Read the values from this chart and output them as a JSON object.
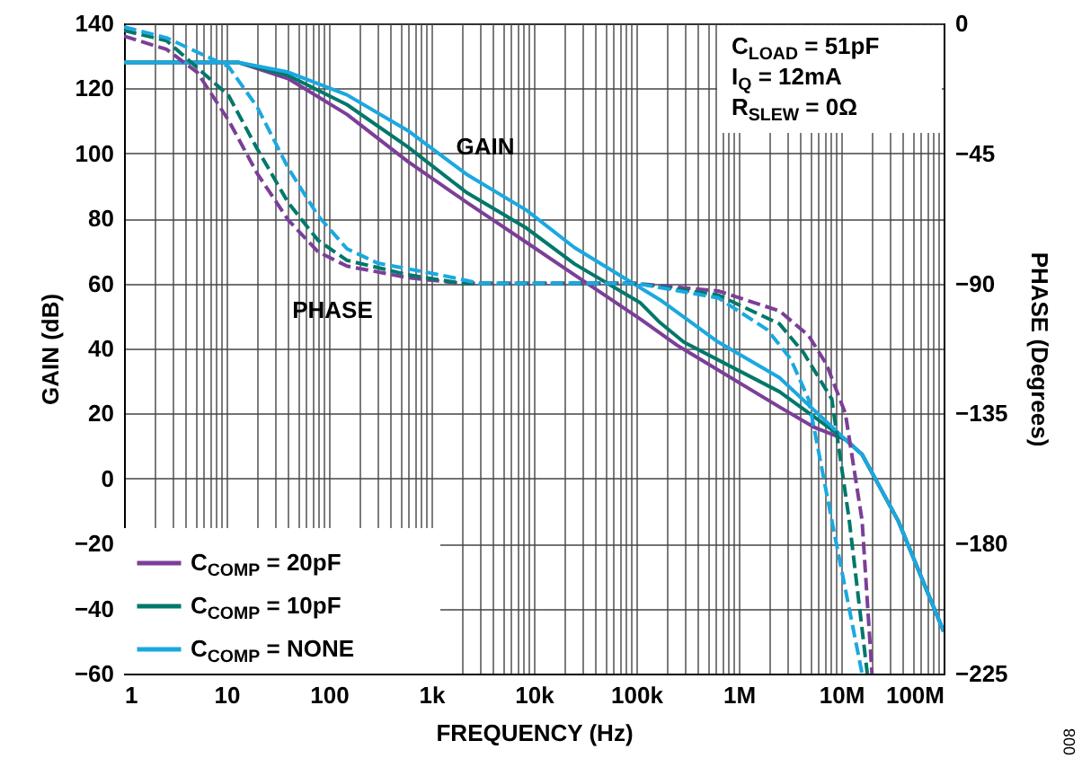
{
  "chart_data": {
    "type": "line",
    "xlabel": "FREQUENCY (Hz)",
    "ylabel": "GAIN (dB)",
    "y2label": "PHASE (Degrees)",
    "log": "x",
    "grid": true,
    "legend": "bottom left",
    "xlim": [
      1,
      100000000
    ],
    "xticks": [
      {
        "value": 1,
        "label": "1"
      },
      {
        "value": 2,
        "label": null
      },
      {
        "value": 3,
        "label": null
      },
      {
        "value": 4,
        "label": null
      },
      {
        "value": 5,
        "label": null
      },
      {
        "value": 6,
        "label": null
      },
      {
        "value": 7,
        "label": null
      },
      {
        "value": 8,
        "label": null
      },
      {
        "value": 9,
        "label": null
      },
      {
        "value": 10,
        "label": "10"
      },
      {
        "value": 20,
        "label": null
      },
      {
        "value": 30,
        "label": null
      },
      {
        "value": 40,
        "label": null
      },
      {
        "value": 50,
        "label": null
      },
      {
        "value": 60,
        "label": null
      },
      {
        "value": 70,
        "label": null
      },
      {
        "value": 80,
        "label": null
      },
      {
        "value": 90,
        "label": null
      },
      {
        "value": 100,
        "label": "100"
      },
      {
        "value": 200,
        "label": null
      },
      {
        "value": 300,
        "label": null
      },
      {
        "value": 400,
        "label": null
      },
      {
        "value": 500,
        "label": null
      },
      {
        "value": 600,
        "label": null
      },
      {
        "value": 700,
        "label": null
      },
      {
        "value": 800,
        "label": null
      },
      {
        "value": 900,
        "label": null
      },
      {
        "value": 1000,
        "label": "1k"
      },
      {
        "value": 2000,
        "label": null
      },
      {
        "value": 3000,
        "label": null
      },
      {
        "value": 4000,
        "label": null
      },
      {
        "value": 5000,
        "label": null
      },
      {
        "value": 6000,
        "label": null
      },
      {
        "value": 7000,
        "label": null
      },
      {
        "value": 8000,
        "label": null
      },
      {
        "value": 9000,
        "label": null
      },
      {
        "value": 10000,
        "label": "10k"
      },
      {
        "value": 20000,
        "label": null
      },
      {
        "value": 30000,
        "label": null
      },
      {
        "value": 40000,
        "label": null
      },
      {
        "value": 50000,
        "label": null
      },
      {
        "value": 60000,
        "label": null
      },
      {
        "value": 70000,
        "label": null
      },
      {
        "value": 80000,
        "label": null
      },
      {
        "value": 90000,
        "label": null
      },
      {
        "value": 100000,
        "label": "100k"
      },
      {
        "value": 200000,
        "label": null
      },
      {
        "value": 300000,
        "label": null
      },
      {
        "value": 400000,
        "label": null
      },
      {
        "value": 500000,
        "label": null
      },
      {
        "value": 600000,
        "label": null
      },
      {
        "value": 700000,
        "label": null
      },
      {
        "value": 800000,
        "label": null
      },
      {
        "value": 900000,
        "label": null
      },
      {
        "value": 1000000,
        "label": "1M"
      },
      {
        "value": 2000000,
        "label": null
      },
      {
        "value": 3000000,
        "label": null
      },
      {
        "value": 4000000,
        "label": null
      },
      {
        "value": 5000000,
        "label": null
      },
      {
        "value": 6000000,
        "label": null
      },
      {
        "value": 7000000,
        "label": null
      },
      {
        "value": 8000000,
        "label": null
      },
      {
        "value": 9000000,
        "label": null
      },
      {
        "value": 10000000,
        "label": "10M"
      },
      {
        "value": 20000000,
        "label": null
      },
      {
        "value": 30000000,
        "label": null
      },
      {
        "value": 40000000,
        "label": null
      },
      {
        "value": 50000000,
        "label": null
      },
      {
        "value": 60000000,
        "label": null
      },
      {
        "value": 70000000,
        "label": null
      },
      {
        "value": 80000000,
        "label": null
      },
      {
        "value": 90000000,
        "label": null
      },
      {
        "value": 100000000,
        "label": "100M"
      }
    ],
    "ylim": [
      -60,
      140
    ],
    "yticks": [
      -60,
      -40,
      -20,
      0,
      20,
      40,
      60,
      80,
      100,
      120,
      140
    ],
    "y2lim": [
      -225,
      0
    ],
    "y2ticks": [
      0,
      -45,
      -90,
      -135,
      -180,
      -225
    ],
    "series": [
      {
        "name": "C$_{COMP}$ = 20pF",
        "color": "#7b3f98",
        "line_style": "solid",
        "x": [
          1,
          13,
          40,
          150,
          590,
          2200,
          8500,
          25000,
          110000,
          250000,
          2500000,
          5500000,
          11000000,
          16000000,
          36000000,
          100000000
        ],
        "values": [
          128,
          128,
          123,
          112,
          97.5,
          85,
          72.6,
          62.6,
          49,
          41,
          22,
          15.7,
          12,
          7.4,
          -13,
          -47
        ]
      },
      {
        "name": "C$_{COMP}$ = 10pF",
        "color": "#00786a",
        "line_style": "solid",
        "x": [
          1,
          13,
          40,
          150,
          590,
          2200,
          8500,
          25000,
          110000,
          170000,
          290000,
          2500000,
          11000000,
          16000000,
          36000000,
          100000000
        ],
        "values": [
          128,
          128,
          124,
          115,
          102,
          88,
          77,
          66,
          54,
          48,
          42,
          26.7,
          12,
          7.4,
          -13,
          -47
        ]
      },
      {
        "name": "C$_{COMP}$ = NONE",
        "color": "#1ba8e0",
        "line_style": "solid",
        "x": [
          1,
          13,
          40,
          150,
          590,
          2200,
          8500,
          25000,
          170000,
          630000,
          2500000,
          11000000,
          16000000,
          36000000,
          100000000
        ],
        "values": [
          128,
          128,
          125,
          118,
          107,
          93.6,
          82.5,
          71,
          55,
          42,
          31,
          12,
          7.4,
          -13,
          -47
        ]
      },
      {
        "color": "#7b3f98",
        "axis": "y2",
        "line_style": "dashed",
        "x": [
          1,
          2.6,
          5.2,
          10.5,
          20,
          40,
          78,
          150,
          590,
          2000,
          100000,
          630000,
          2500000,
          4800000,
          7200000,
          11000000,
          16000000,
          20000000
        ],
        "values": [
          -4.4,
          -9,
          -17,
          -33.6,
          -52,
          -68,
          -79,
          -84,
          -88,
          -90,
          -90,
          -92.6,
          -99.5,
          -108,
          -118,
          -135,
          -172,
          -225
        ]
      },
      {
        "color": "#00786a",
        "axis": "y2",
        "line_style": "dashed",
        "x": [
          1,
          2.6,
          10.5,
          20,
          40,
          78,
          150,
          590,
          2000,
          100000,
          630000,
          2500000,
          4300000,
          8100000,
          12000000,
          18000000
        ],
        "values": [
          -2.5,
          -6,
          -25,
          -43.5,
          -62,
          -75,
          -82,
          -87,
          -90,
          -90,
          -94,
          -104,
          -114,
          -130,
          -172,
          -225
        ]
      },
      {
        "color": "#1ba8e0",
        "axis": "y2",
        "line_style": "dashed",
        "x": [
          1,
          2.6,
          10.5,
          20,
          40,
          78,
          150,
          300,
          1200,
          3000,
          100000,
          630000,
          1900000,
          3200000,
          4800000,
          8100000,
          16000000
        ],
        "values": [
          -1.2,
          -5,
          -15,
          -29,
          -50,
          -66.5,
          -78,
          -83,
          -87,
          -90,
          -90,
          -95,
          -106,
          -116,
          -130,
          -172,
          -225
        ]
      }
    ],
    "annotations": [
      "GAIN",
      "PHASE",
      "C$_{LOAD}$ = 51pF",
      "I$_{Q}$ = 12mA",
      "R$_{SLEW}$ = 0Ω",
      "008"
    ]
  }
}
